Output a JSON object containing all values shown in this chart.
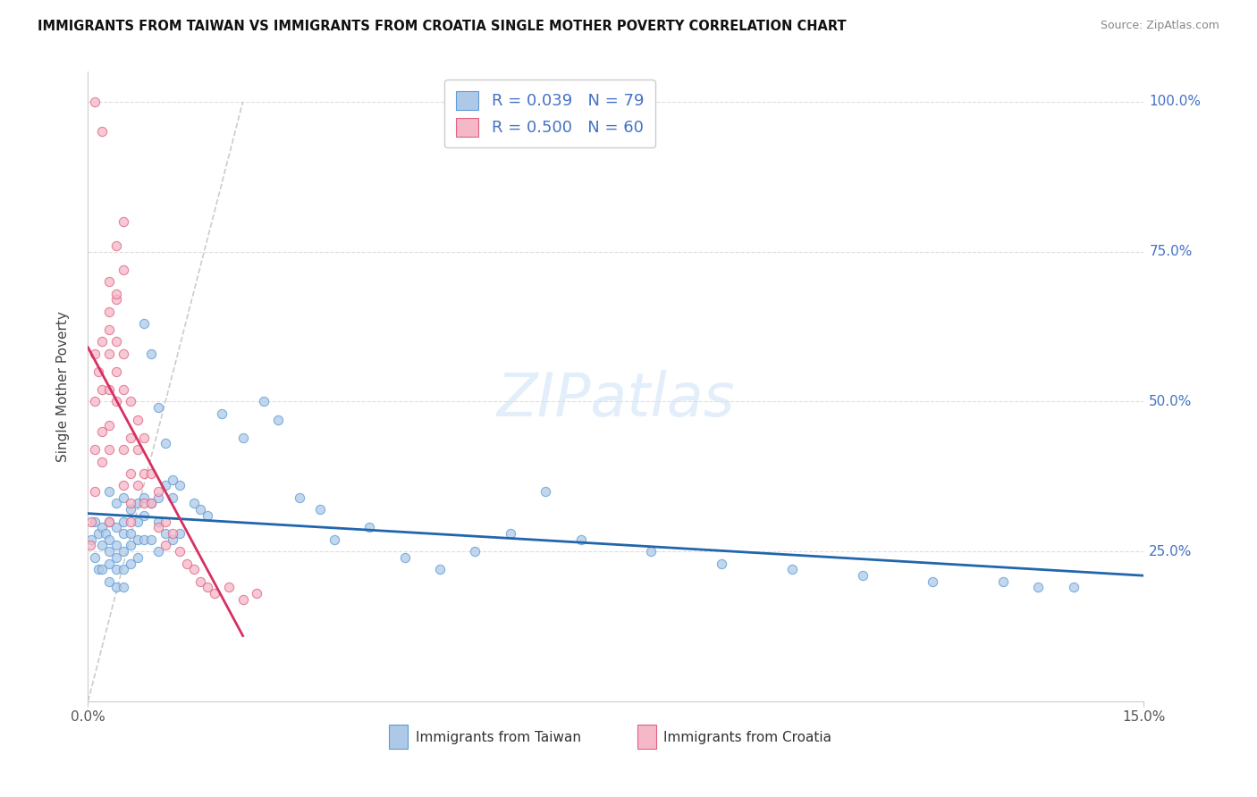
{
  "title": "IMMIGRANTS FROM TAIWAN VS IMMIGRANTS FROM CROATIA SINGLE MOTHER POVERTY CORRELATION CHART",
  "source": "Source: ZipAtlas.com",
  "ylabel": "Single Mother Poverty",
  "legend_label_taiwan": "Immigrants from Taiwan",
  "legend_label_croatia": "Immigrants from Croatia",
  "R_taiwan": 0.039,
  "N_taiwan": 79,
  "R_croatia": 0.5,
  "N_croatia": 60,
  "xlim": [
    0.0,
    0.15
  ],
  "ylim": [
    0.0,
    1.05
  ],
  "blue_fill": "#aec9e8",
  "blue_edge": "#5b9bd5",
  "pink_fill": "#f4b8c8",
  "pink_edge": "#e06080",
  "blue_line": "#2166ac",
  "pink_line": "#d63060",
  "diag_color": "#cccccc",
  "grid_color": "#dddddd",
  "right_label_color": "#4472c4",
  "taiwan_x": [
    0.0005,
    0.001,
    0.001,
    0.0015,
    0.0015,
    0.002,
    0.002,
    0.002,
    0.0025,
    0.003,
    0.003,
    0.003,
    0.003,
    0.003,
    0.003,
    0.004,
    0.004,
    0.004,
    0.004,
    0.004,
    0.004,
    0.005,
    0.005,
    0.005,
    0.005,
    0.005,
    0.005,
    0.006,
    0.006,
    0.006,
    0.006,
    0.007,
    0.007,
    0.007,
    0.007,
    0.008,
    0.008,
    0.008,
    0.009,
    0.009,
    0.01,
    0.01,
    0.01,
    0.011,
    0.011,
    0.012,
    0.012,
    0.013,
    0.013,
    0.015,
    0.016,
    0.017,
    0.019,
    0.022,
    0.025,
    0.027,
    0.03,
    0.033,
    0.035,
    0.04,
    0.045,
    0.05,
    0.055,
    0.06,
    0.065,
    0.07,
    0.08,
    0.09,
    0.1,
    0.11,
    0.12,
    0.13,
    0.135,
    0.14,
    0.008,
    0.009,
    0.01,
    0.011,
    0.012
  ],
  "taiwan_y": [
    0.27,
    0.3,
    0.24,
    0.28,
    0.22,
    0.29,
    0.26,
    0.22,
    0.28,
    0.35,
    0.3,
    0.27,
    0.25,
    0.23,
    0.2,
    0.33,
    0.29,
    0.26,
    0.24,
    0.22,
    0.19,
    0.34,
    0.3,
    0.28,
    0.25,
    0.22,
    0.19,
    0.32,
    0.28,
    0.26,
    0.23,
    0.33,
    0.3,
    0.27,
    0.24,
    0.34,
    0.31,
    0.27,
    0.33,
    0.27,
    0.34,
    0.3,
    0.25,
    0.36,
    0.28,
    0.34,
    0.27,
    0.36,
    0.28,
    0.33,
    0.32,
    0.31,
    0.48,
    0.44,
    0.5,
    0.47,
    0.34,
    0.32,
    0.27,
    0.29,
    0.24,
    0.22,
    0.25,
    0.28,
    0.35,
    0.27,
    0.25,
    0.23,
    0.22,
    0.21,
    0.2,
    0.2,
    0.19,
    0.19,
    0.63,
    0.58,
    0.49,
    0.43,
    0.37
  ],
  "croatia_x": [
    0.0003,
    0.0005,
    0.001,
    0.001,
    0.001,
    0.001,
    0.0015,
    0.002,
    0.002,
    0.002,
    0.002,
    0.003,
    0.003,
    0.003,
    0.003,
    0.003,
    0.003,
    0.004,
    0.004,
    0.004,
    0.004,
    0.005,
    0.005,
    0.005,
    0.005,
    0.006,
    0.006,
    0.006,
    0.006,
    0.007,
    0.007,
    0.007,
    0.008,
    0.008,
    0.008,
    0.009,
    0.009,
    0.01,
    0.01,
    0.011,
    0.011,
    0.012,
    0.013,
    0.014,
    0.015,
    0.016,
    0.017,
    0.018,
    0.02,
    0.022,
    0.024,
    0.003,
    0.003,
    0.004,
    0.004,
    0.005,
    0.005,
    0.006,
    0.001,
    0.002
  ],
  "croatia_y": [
    0.26,
    0.3,
    0.35,
    0.42,
    0.5,
    0.58,
    0.55,
    0.4,
    0.45,
    0.52,
    0.6,
    0.42,
    0.46,
    0.52,
    0.58,
    0.65,
    0.3,
    0.5,
    0.55,
    0.6,
    0.67,
    0.52,
    0.58,
    0.42,
    0.36,
    0.5,
    0.44,
    0.38,
    0.33,
    0.47,
    0.42,
    0.36,
    0.44,
    0.38,
    0.33,
    0.38,
    0.33,
    0.35,
    0.29,
    0.3,
    0.26,
    0.28,
    0.25,
    0.23,
    0.22,
    0.2,
    0.19,
    0.18,
    0.19,
    0.17,
    0.18,
    0.7,
    0.62,
    0.76,
    0.68,
    0.8,
    0.72,
    0.3,
    1.0,
    0.95
  ],
  "taiwan_s": 55,
  "croatia_s": 55
}
